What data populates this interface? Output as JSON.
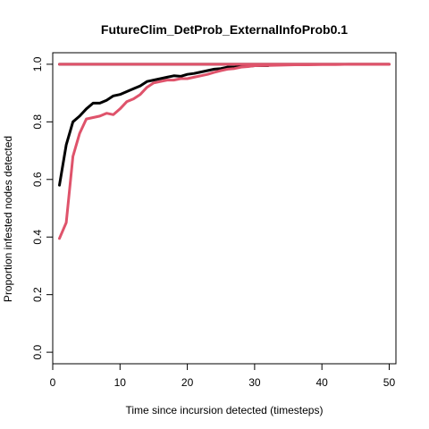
{
  "chart_data": {
    "type": "line",
    "title": "FutureClim_DetProb_ExternalInfoProb0.1",
    "xlabel": "Time since incursion detected (timesteps)",
    "ylabel": "Proportion infested nodes detected",
    "xlim": [
      0,
      51
    ],
    "ylim": [
      -0.04,
      1.04
    ],
    "xticks": [
      0,
      10,
      20,
      30,
      40,
      50
    ],
    "yticks": [
      0.0,
      0.2,
      0.4,
      0.6,
      0.8,
      1.0
    ],
    "xtick_labels": [
      "0",
      "10",
      "20",
      "30",
      "40",
      "50"
    ],
    "ytick_labels": [
      "0.0",
      "0.2",
      "0.4",
      "0.6",
      "0.8",
      "1.0"
    ],
    "grid": false,
    "series": [
      {
        "color": "#000000",
        "x": [
          1,
          2,
          3,
          4,
          5,
          6,
          7,
          8,
          9,
          10,
          11,
          12,
          13,
          14,
          15,
          16,
          17,
          18,
          19,
          20,
          21,
          22,
          23,
          24,
          25,
          26,
          27,
          28,
          29,
          30,
          31,
          32
        ],
        "y": [
          0.58,
          0.72,
          0.8,
          0.82,
          0.845,
          0.865,
          0.865,
          0.875,
          0.89,
          0.895,
          0.905,
          0.915,
          0.925,
          0.94,
          0.945,
          0.95,
          0.955,
          0.96,
          0.958,
          0.965,
          0.968,
          0.973,
          0.978,
          0.983,
          0.985,
          0.99,
          0.99,
          0.992,
          0.993,
          0.995,
          0.995,
          0.995
        ]
      },
      {
        "color": "#000000",
        "x": [
          1,
          50
        ],
        "y": [
          1.0,
          1.0
        ]
      },
      {
        "color": "#DF536B",
        "x": [
          1,
          2,
          3,
          4,
          5,
          6,
          7,
          8,
          9,
          10,
          11,
          12,
          13,
          14,
          15,
          16,
          17,
          18,
          19,
          20,
          21,
          22,
          23,
          24,
          25,
          26,
          27,
          28,
          29,
          30,
          32,
          34,
          36,
          38,
          40,
          42,
          44,
          46,
          48,
          50
        ],
        "y": [
          0.395,
          0.45,
          0.68,
          0.76,
          0.81,
          0.815,
          0.82,
          0.83,
          0.825,
          0.845,
          0.87,
          0.88,
          0.895,
          0.92,
          0.935,
          0.94,
          0.945,
          0.945,
          0.95,
          0.95,
          0.955,
          0.96,
          0.965,
          0.972,
          0.978,
          0.983,
          0.985,
          0.99,
          0.992,
          0.995,
          0.996,
          0.997,
          0.998,
          0.998,
          0.999,
          0.999,
          1.0,
          1.0,
          1.0,
          1.0
        ]
      },
      {
        "color": "#DF536B",
        "x": [
          1,
          50
        ],
        "y": [
          1.0,
          1.0
        ]
      }
    ]
  }
}
